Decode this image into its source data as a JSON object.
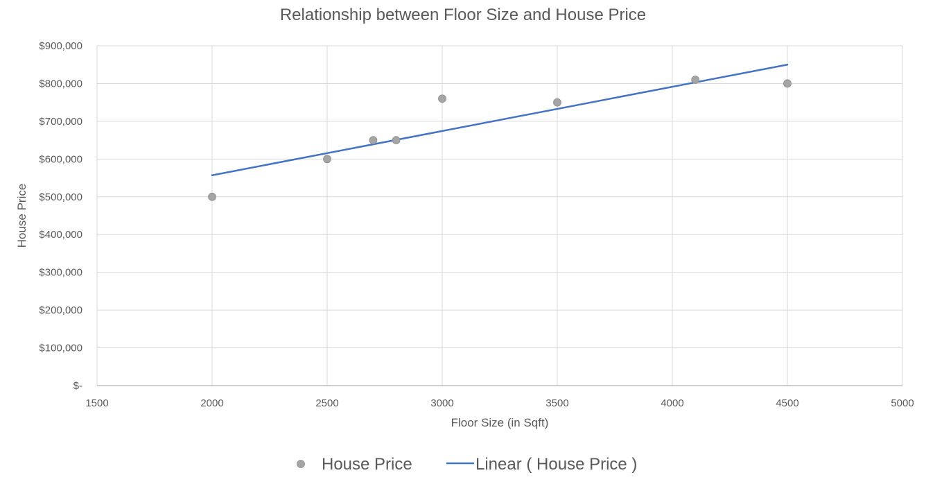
{
  "chart_data": {
    "type": "scatter",
    "title": "Relationship between Floor Size and House Price",
    "xlabel": "Floor Size (in Sqft)",
    "ylabel": "House Price",
    "xlim": [
      1500,
      5000
    ],
    "ylim": [
      0,
      900000
    ],
    "x_ticks": [
      1500,
      2000,
      2500,
      3000,
      3500,
      4000,
      4500,
      5000
    ],
    "y_ticks": [
      0,
      100000,
      200000,
      300000,
      400000,
      500000,
      600000,
      700000,
      800000,
      900000
    ],
    "y_tick_labels": [
      "$-",
      "$100,000",
      "$200,000",
      "$300,000",
      "$400,000",
      "$500,000",
      "$600,000",
      "$700,000",
      "$800,000",
      "$900,000"
    ],
    "grid": true,
    "legend_position": "bottom",
    "series": [
      {
        "name": "House Price",
        "type": "scatter",
        "color": "#A5A5A5",
        "x": [
          2000,
          2500,
          2700,
          2800,
          3000,
          3500,
          4100,
          4500
        ],
        "y": [
          500000,
          600000,
          650000,
          650000,
          760000,
          750000,
          810000,
          800000
        ]
      },
      {
        "name": "Linear ( House Price )",
        "type": "line",
        "color": "#4472C4",
        "x": [
          2000,
          4500
        ],
        "y": [
          557000,
          850000
        ]
      }
    ]
  }
}
